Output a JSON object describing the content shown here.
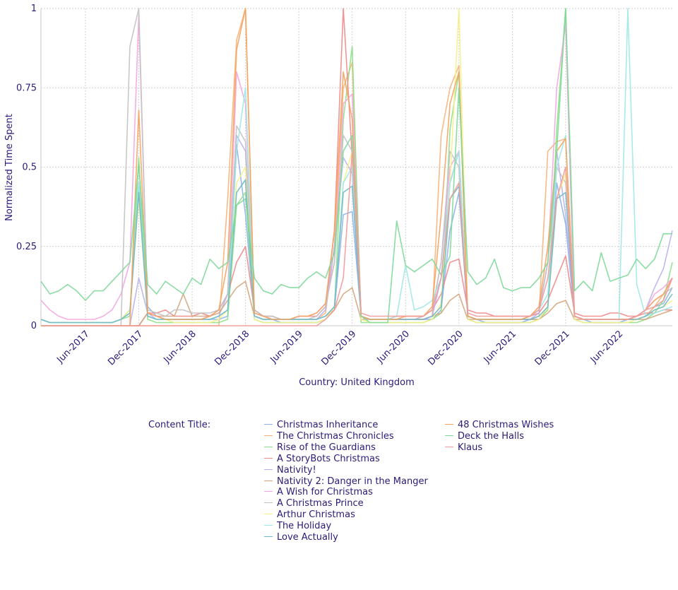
{
  "chart_data": {
    "type": "line",
    "title": "",
    "xlabel": "Country: United Kingdom",
    "ylabel": "Normalized Time Spent",
    "x_start": "2017-01",
    "x_end": "2022-12",
    "xlim": [
      "2017-01",
      "2022-12"
    ],
    "ylim": [
      0,
      1
    ],
    "y_ticks": [
      {
        "value": 0,
        "label": "0"
      },
      {
        "value": 0.25,
        "label": "0.25"
      },
      {
        "value": 0.5,
        "label": "0.5"
      },
      {
        "value": 0.75,
        "label": "0.75"
      },
      {
        "value": 1,
        "label": "1"
      }
    ],
    "x_ticks": [
      {
        "date": "2017-06",
        "label": "Jun-2017"
      },
      {
        "date": "2017-12",
        "label": "Dec-2017"
      },
      {
        "date": "2018-06",
        "label": "Jun-2018"
      },
      {
        "date": "2018-12",
        "label": "Dec-2018"
      },
      {
        "date": "2019-06",
        "label": "Jun-2019"
      },
      {
        "date": "2019-12",
        "label": "Dec-2019"
      },
      {
        "date": "2020-06",
        "label": "Jun-2020"
      },
      {
        "date": "2020-12",
        "label": "Dec-2020"
      },
      {
        "date": "2021-06",
        "label": "Jun-2021"
      },
      {
        "date": "2021-12",
        "label": "Dec-2021"
      },
      {
        "date": "2022-06",
        "label": "Jun-2022"
      }
    ],
    "grid": true,
    "legend_title": "Content Title:",
    "legend_position": "bottom",
    "series": [
      {
        "name": "Christmas Inheritance",
        "color": "#8fb3e8",
        "values": [
          0.02,
          0.01,
          0.01,
          0.01,
          0.01,
          0.01,
          0.01,
          0.01,
          0.01,
          0.02,
          0.05,
          0.45,
          0.06,
          0.03,
          0.02,
          0.02,
          0.02,
          0.02,
          0.02,
          0.02,
          0.02,
          0.03,
          0.57,
          0.35,
          0.03,
          0.02,
          0.02,
          0.01,
          0.01,
          0.01,
          0.01,
          0.01,
          0.02,
          0.05,
          0.35,
          0.36,
          0.03,
          0.02,
          0.02,
          0.02,
          0.02,
          0.02,
          0.02,
          0.02,
          0.02,
          0.05,
          0.3,
          0.42,
          0.03,
          0.02,
          0.01,
          0.01,
          0.01,
          0.01,
          0.01,
          0.02,
          0.02,
          0.06,
          0.45,
          0.32,
          0.03,
          0.02,
          0.01,
          0.01,
          0.01,
          0.01,
          0.02,
          0.02,
          0.03,
          0.06,
          0.07,
          0.12
        ]
      },
      {
        "name": "The Christmas Chronicles",
        "color": "#f7b27a",
        "values": [
          0,
          0,
          0,
          0,
          0,
          0,
          0,
          0,
          0,
          0,
          0,
          0,
          0,
          0,
          0,
          0,
          0,
          0,
          0,
          0,
          0,
          0.4,
          0.9,
          1.0,
          0.05,
          0.03,
          0.02,
          0.02,
          0.02,
          0.02,
          0.02,
          0.02,
          0.04,
          0.25,
          0.75,
          0.83,
          0.03,
          0.02,
          0.02,
          0.02,
          0.02,
          0.02,
          0.02,
          0.02,
          0.03,
          0.6,
          0.75,
          0.82,
          0.03,
          0.02,
          0.02,
          0.02,
          0.02,
          0.02,
          0.02,
          0.02,
          0.03,
          0.55,
          0.58,
          0.59,
          0.03,
          0.02,
          0.02,
          0.02,
          0.02,
          0.02,
          0.02,
          0.02,
          0.03,
          0.06,
          0.1,
          0.15
        ]
      },
      {
        "name": "Rise of the Guardians",
        "color": "#8ee08a",
        "values": [
          0.02,
          0.01,
          0.01,
          0.01,
          0.01,
          0.01,
          0.01,
          0.01,
          0.01,
          0.02,
          0.03,
          0.53,
          0.02,
          0.01,
          0.01,
          0.01,
          0.01,
          0.01,
          0.01,
          0.01,
          0.01,
          0.02,
          0.38,
          0.42,
          0.02,
          0.01,
          0.01,
          0.01,
          0.01,
          0.01,
          0.01,
          0.01,
          0.02,
          0.05,
          0.65,
          0.88,
          0.01,
          0.01,
          0.01,
          0.01,
          0.01,
          0.01,
          0.01,
          0.01,
          0.02,
          0.04,
          0.62,
          0.8,
          0.02,
          0.01,
          0.01,
          0.01,
          0.01,
          0.01,
          0.01,
          0.01,
          0.02,
          0.05,
          0.62,
          1.0,
          0.02,
          0.01,
          0.01,
          0.01,
          0.01,
          0.01,
          0.01,
          0.01,
          0.02,
          0.04,
          0.08,
          0.2
        ]
      },
      {
        "name": "A StoryBots Christmas",
        "color": "#f08a8a",
        "values": [
          0,
          0,
          0,
          0,
          0,
          0,
          0,
          0,
          0,
          0,
          0,
          0,
          0.04,
          0.04,
          0.05,
          0.03,
          0.03,
          0.03,
          0.04,
          0.03,
          0.05,
          0.1,
          0.2,
          0.25,
          0.05,
          0.03,
          0.03,
          0.02,
          0.02,
          0.03,
          0.03,
          0.03,
          0.06,
          0.3,
          1.0,
          0.53,
          0.03,
          0.02,
          0.02,
          0.02,
          0.03,
          0.03,
          0.03,
          0.03,
          0.05,
          0.1,
          0.2,
          0.21,
          0.05,
          0.04,
          0.04,
          0.03,
          0.03,
          0.03,
          0.03,
          0.03,
          0.04,
          0.08,
          0.15,
          0.22,
          0.04,
          0.03,
          0.03,
          0.03,
          0.04,
          0.04,
          0.03,
          0.03,
          0.04,
          0.04,
          0.05,
          0.05
        ]
      },
      {
        "name": "Nativity!",
        "color": "#b9b0f0",
        "values": [
          0,
          0,
          0,
          0,
          0,
          0,
          0,
          0,
          0,
          0,
          0,
          0.15,
          0.04,
          0.02,
          0.02,
          0.02,
          0.02,
          0.02,
          0.02,
          0.02,
          0.03,
          0.1,
          0.6,
          0.55,
          0.03,
          0.02,
          0.02,
          0.02,
          0.02,
          0.02,
          0.02,
          0.02,
          0.05,
          0.25,
          0.53,
          0.48,
          0.03,
          0.02,
          0.02,
          0.02,
          0.02,
          0.02,
          0.02,
          0.02,
          0.03,
          0.15,
          0.45,
          0.55,
          0.03,
          0.02,
          0.02,
          0.02,
          0.02,
          0.02,
          0.02,
          0.02,
          0.04,
          0.2,
          0.55,
          0.35,
          0.03,
          0.02,
          0.02,
          0.02,
          0.02,
          0.02,
          0.02,
          0.03,
          0.05,
          0.12,
          0.18,
          0.3
        ]
      },
      {
        "name": "Nativity 2: Danger in the Manger",
        "color": "#d4a57e",
        "values": [
          0,
          0,
          0,
          0,
          0,
          0,
          0,
          0,
          0,
          0,
          0,
          0,
          0.04,
          0.03,
          0.03,
          0.03,
          0.1,
          0.03,
          0.03,
          0.03,
          0.04,
          0.08,
          0.12,
          0.14,
          0.03,
          0.02,
          0.02,
          0.02,
          0.02,
          0.02,
          0.02,
          0.02,
          0.03,
          0.05,
          0.1,
          0.12,
          0.02,
          0.02,
          0.02,
          0.02,
          0.02,
          0.02,
          0.02,
          0.02,
          0.03,
          0.04,
          0.08,
          0.1,
          0.02,
          0.02,
          0.02,
          0.02,
          0.02,
          0.02,
          0.02,
          0.02,
          0.02,
          0.04,
          0.07,
          0.08,
          0.02,
          0.02,
          0.02,
          0.02,
          0.02,
          0.02,
          0.02,
          0.02,
          0.02,
          0.03,
          0.04,
          0.05
        ]
      },
      {
        "name": "A Wish for Christmas",
        "color": "#f4a6e0",
        "values": [
          0.08,
          0.05,
          0.03,
          0.02,
          0.02,
          0.02,
          0.02,
          0.03,
          0.05,
          0.1,
          0.2,
          0.98,
          0.04,
          0.03,
          0.02,
          0.02,
          0.02,
          0.02,
          0.02,
          0.03,
          0.05,
          0.1,
          0.8,
          0.7,
          0.04,
          0.03,
          0.02,
          0.02,
          0.02,
          0.03,
          0.03,
          0.04,
          0.07,
          0.2,
          0.7,
          0.73,
          0.03,
          0.02,
          0.02,
          0.02,
          0.02,
          0.02,
          0.02,
          0.03,
          0.05,
          0.2,
          0.5,
          0.55,
          0.03,
          0.02,
          0.02,
          0.02,
          0.02,
          0.02,
          0.02,
          0.03,
          0.05,
          0.2,
          0.75,
          0.95,
          0.03,
          0.02,
          0.02,
          0.02,
          0.02,
          0.02,
          0.02,
          0.03,
          0.05,
          0.1,
          0.12,
          0.15
        ]
      },
      {
        "name": "A Christmas Prince",
        "color": "#c2c2c2",
        "values": [
          0,
          0,
          0,
          0,
          0,
          0,
          0,
          0,
          0,
          0,
          0.88,
          1.0,
          0.05,
          0.04,
          0.03,
          0.05,
          0.05,
          0.04,
          0.04,
          0.04,
          0.05,
          0.1,
          0.63,
          0.58,
          0.05,
          0.03,
          0.03,
          0.02,
          0.02,
          0.02,
          0.02,
          0.03,
          0.06,
          0.2,
          0.6,
          0.55,
          0.03,
          0.02,
          0.02,
          0.02,
          0.02,
          0.02,
          0.02,
          0.03,
          0.05,
          0.2,
          0.55,
          0.5,
          0.03,
          0.02,
          0.02,
          0.02,
          0.02,
          0.02,
          0.02,
          0.03,
          0.05,
          0.2,
          0.5,
          0.45,
          0.03,
          0.02,
          0.02,
          0.02,
          0.02,
          0.02,
          0.02,
          0.03,
          0.05,
          0.08,
          0.1,
          0.12
        ]
      },
      {
        "name": "Arthur Christmas",
        "color": "#f5f08a",
        "values": [
          0.02,
          0.01,
          0.01,
          0.01,
          0.01,
          0.01,
          0.01,
          0.01,
          0.01,
          0.02,
          0.05,
          0.4,
          0.03,
          0.02,
          0.02,
          0.01,
          0.01,
          0.01,
          0.01,
          0.01,
          0.02,
          0.05,
          0.45,
          0.5,
          0.02,
          0.01,
          0.01,
          0.01,
          0.01,
          0.01,
          0.01,
          0.01,
          0.02,
          0.06,
          0.45,
          0.55,
          0.02,
          0.01,
          0.01,
          0.01,
          0.01,
          0.01,
          0.01,
          0.01,
          0.02,
          0.07,
          0.45,
          1.0,
          0.02,
          0.01,
          0.01,
          0.01,
          0.01,
          0.01,
          0.01,
          0.01,
          0.02,
          0.06,
          0.4,
          0.48,
          0.02,
          0.01,
          0.01,
          0.01,
          0.01,
          0.01,
          0.01,
          0.02,
          0.03,
          0.05,
          0.06,
          0.08
        ]
      },
      {
        "name": "The Holiday",
        "color": "#9ee8e6",
        "values": [
          0.02,
          0.01,
          0.01,
          0.01,
          0.01,
          0.01,
          0.01,
          0.01,
          0.01,
          0.02,
          0.04,
          0.45,
          0.03,
          0.02,
          0.02,
          0.02,
          0.02,
          0.02,
          0.02,
          0.02,
          0.03,
          0.05,
          0.55,
          0.75,
          0.03,
          0.02,
          0.02,
          0.02,
          0.02,
          0.02,
          0.02,
          0.02,
          0.03,
          0.06,
          0.45,
          0.5,
          0.03,
          0.02,
          0.02,
          0.02,
          0.03,
          0.19,
          0.05,
          0.06,
          0.08,
          0.15,
          0.45,
          0.55,
          0.03,
          0.02,
          0.02,
          0.02,
          0.02,
          0.02,
          0.02,
          0.03,
          0.05,
          0.1,
          0.5,
          0.6,
          0.03,
          0.02,
          0.02,
          0.02,
          0.02,
          0.02,
          1.0,
          0.13,
          0.03,
          0.04,
          0.05,
          0.06
        ]
      },
      {
        "name": "Love Actually",
        "color": "#6fb8c8",
        "values": [
          0.02,
          0.01,
          0.01,
          0.01,
          0.01,
          0.01,
          0.01,
          0.01,
          0.01,
          0.02,
          0.04,
          0.42,
          0.03,
          0.02,
          0.02,
          0.02,
          0.02,
          0.02,
          0.02,
          0.02,
          0.03,
          0.05,
          0.42,
          0.46,
          0.03,
          0.02,
          0.02,
          0.02,
          0.02,
          0.02,
          0.02,
          0.02,
          0.03,
          0.06,
          0.42,
          0.44,
          0.03,
          0.02,
          0.02,
          0.02,
          0.02,
          0.02,
          0.02,
          0.02,
          0.03,
          0.06,
          0.4,
          0.44,
          0.03,
          0.02,
          0.02,
          0.02,
          0.02,
          0.02,
          0.02,
          0.02,
          0.03,
          0.06,
          0.4,
          0.42,
          0.03,
          0.02,
          0.02,
          0.02,
          0.02,
          0.02,
          0.02,
          0.02,
          0.03,
          0.05,
          0.06,
          0.1
        ]
      },
      {
        "name": "48 Christmas Wishes",
        "color": "#f5a35c",
        "values": [
          0,
          0,
          0,
          0,
          0,
          0,
          0,
          0,
          0,
          0,
          0,
          0.68,
          0.04,
          0.03,
          0.02,
          0.02,
          0.02,
          0.02,
          0.02,
          0.03,
          0.05,
          0.2,
          0.87,
          1.0,
          0.04,
          0.03,
          0.02,
          0.02,
          0.02,
          0.03,
          0.03,
          0.04,
          0.07,
          0.3,
          0.8,
          0.65,
          0.03,
          0.02,
          0.02,
          0.02,
          0.02,
          0.03,
          0.03,
          0.03,
          0.06,
          0.35,
          0.7,
          0.8,
          0.03,
          0.02,
          0.02,
          0.02,
          0.02,
          0.02,
          0.02,
          0.03,
          0.06,
          0.25,
          0.55,
          0.59,
          0.03,
          0.02,
          0.02,
          0.02,
          0.02,
          0.02,
          0.02,
          0.03,
          0.05,
          0.08,
          0.1,
          0.15
        ]
      },
      {
        "name": "Deck the Halls",
        "color": "#7fd89a",
        "values": [
          0.14,
          0.1,
          0.11,
          0.13,
          0.11,
          0.08,
          0.11,
          0.11,
          0.14,
          0.17,
          0.2,
          0.51,
          0.13,
          0.1,
          0.14,
          0.12,
          0.1,
          0.15,
          0.13,
          0.21,
          0.18,
          0.2,
          0.38,
          0.4,
          0.15,
          0.11,
          0.1,
          0.13,
          0.12,
          0.12,
          0.15,
          0.17,
          0.15,
          0.23,
          0.55,
          0.6,
          0.03,
          0.01,
          0.01,
          0.01,
          0.33,
          0.19,
          0.17,
          0.19,
          0.21,
          0.16,
          0.22,
          0.75,
          0.17,
          0.13,
          0.15,
          0.21,
          0.12,
          0.11,
          0.12,
          0.12,
          0.15,
          0.2,
          0.55,
          1.0,
          0.11,
          0.14,
          0.11,
          0.23,
          0.14,
          0.15,
          0.16,
          0.21,
          0.18,
          0.21,
          0.29,
          0.29
        ]
      },
      {
        "name": "Klaus",
        "color": "#f29a9a",
        "values": [
          0,
          0,
          0,
          0,
          0,
          0,
          0,
          0,
          0,
          0,
          0,
          0,
          0,
          0,
          0,
          0,
          0,
          0,
          0,
          0,
          0,
          0,
          0,
          0,
          0,
          0,
          0,
          0,
          0,
          0,
          0,
          0,
          0.02,
          0.05,
          0.15,
          0.55,
          0.04,
          0.03,
          0.03,
          0.03,
          0.03,
          0.03,
          0.03,
          0.03,
          0.05,
          0.15,
          0.4,
          0.45,
          0.04,
          0.03,
          0.03,
          0.03,
          0.03,
          0.03,
          0.03,
          0.03,
          0.05,
          0.15,
          0.4,
          0.5,
          0.03,
          0.02,
          0.02,
          0.02,
          0.02,
          0.02,
          0.02,
          0.03,
          0.05,
          0.06,
          0.08,
          0.15
        ]
      }
    ]
  }
}
